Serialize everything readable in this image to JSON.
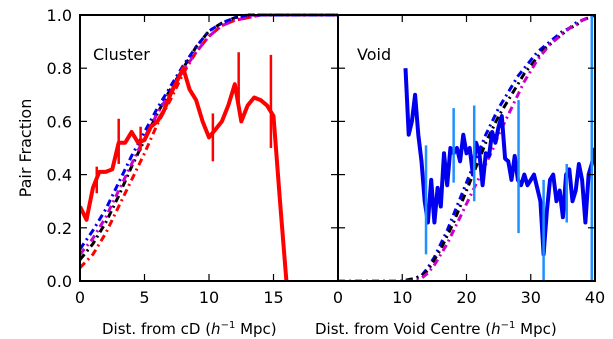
{
  "chart_data": [
    {
      "type": "line",
      "panel_label": "Cluster",
      "xlabel": "Dist. from cD ($h^{-1}$ Mpc)",
      "xlabel_main": "Dist. from cD (",
      "xlabel_sup": "−1",
      "xlabel_h": "h",
      "xlabel_tail": " Mpc)",
      "ylabel": "Pair Fraction",
      "xlim": [
        0,
        20
      ],
      "ylim": [
        0.0,
        1.0
      ],
      "xticks": [
        0,
        5,
        10,
        15
      ],
      "xtick_labels": [
        "0",
        "5",
        "10",
        "15"
      ],
      "yticks": [
        0.0,
        0.2,
        0.4,
        0.6,
        0.8,
        1.0
      ],
      "ytick_labels": [
        "0.0",
        "0.2",
        "0.4",
        "0.6",
        "0.8",
        "1.0"
      ],
      "series": [
        {
          "color": "#ff0000",
          "style": "solid",
          "width": 4,
          "x": [
            0,
            0.5,
            1,
            1.5,
            2,
            2.5,
            3,
            3.5,
            4,
            4.5,
            5,
            5.5,
            6,
            6.5,
            7,
            7.5,
            8,
            8.5,
            9,
            9.5,
            10,
            10.5,
            11,
            11.5,
            12,
            12.5,
            13,
            13.5,
            14,
            14.5,
            15,
            15.5,
            16
          ],
          "y": [
            0.28,
            0.23,
            0.35,
            0.41,
            0.41,
            0.42,
            0.52,
            0.52,
            0.56,
            0.52,
            0.53,
            0.58,
            0.6,
            0.64,
            0.7,
            0.75,
            0.8,
            0.72,
            0.68,
            0.6,
            0.54,
            0.57,
            0.6,
            0.66,
            0.74,
            0.6,
            0.66,
            0.69,
            0.68,
            0.66,
            0.62,
            0.3,
            0.0
          ],
          "errorbars": [
            {
              "x": 1.3,
              "lo": 0.33,
              "hi": 0.43
            },
            {
              "x": 3,
              "lo": 0.44,
              "hi": 0.61
            },
            {
              "x": 4.7,
              "lo": 0.49,
              "hi": 0.58
            },
            {
              "x": 10.3,
              "lo": 0.45,
              "hi": 0.63
            },
            {
              "x": 12.3,
              "lo": 0.65,
              "hi": 0.86
            },
            {
              "x": 14.8,
              "lo": 0.5,
              "hi": 0.85
            }
          ]
        },
        {
          "color": "#ff0000",
          "style": "dashdot",
          "width": 3,
          "x": [
            0,
            1,
            2,
            3,
            4,
            5,
            6,
            7,
            8,
            9,
            10,
            11,
            12,
            13,
            14,
            15,
            16,
            17,
            18,
            19,
            20
          ],
          "y": [
            0.05,
            0.1,
            0.18,
            0.28,
            0.38,
            0.48,
            0.59,
            0.68,
            0.78,
            0.86,
            0.92,
            0.96,
            0.98,
            0.99,
            1.0,
            1.0,
            1.0,
            1.0,
            1.0,
            1.0,
            1.0
          ]
        },
        {
          "color": "#000000",
          "style": "dashdot",
          "width": 3,
          "x": [
            0,
            1,
            2,
            3,
            4,
            5,
            6,
            7,
            8,
            9,
            10,
            11,
            12,
            13,
            14,
            15,
            16,
            17,
            18,
            19,
            20
          ],
          "y": [
            0.08,
            0.14,
            0.22,
            0.32,
            0.43,
            0.53,
            0.63,
            0.72,
            0.8,
            0.88,
            0.94,
            0.97,
            0.99,
            1.0,
            1.0,
            1.0,
            1.0,
            1.0,
            1.0,
            1.0,
            1.0
          ]
        },
        {
          "color": "#cc00cc",
          "style": "dashdot",
          "width": 3,
          "x": [
            0,
            1,
            2,
            3,
            4,
            5,
            6,
            7,
            8,
            9,
            10,
            11,
            12,
            13,
            14,
            15,
            16,
            17,
            18,
            19,
            20
          ],
          "y": [
            0.1,
            0.16,
            0.24,
            0.34,
            0.44,
            0.54,
            0.63,
            0.71,
            0.79,
            0.86,
            0.92,
            0.96,
            0.98,
            0.99,
            1.0,
            1.0,
            1.0,
            1.0,
            1.0,
            1.0,
            1.0
          ]
        },
        {
          "color": "#0000ee",
          "style": "dashdot",
          "width": 3,
          "x": [
            0,
            1,
            2,
            3,
            4,
            5,
            6,
            7,
            8,
            9,
            10,
            11,
            12,
            13,
            14,
            15,
            16,
            17,
            18,
            19,
            20
          ],
          "y": [
            0.12,
            0.19,
            0.27,
            0.37,
            0.47,
            0.56,
            0.65,
            0.73,
            0.81,
            0.88,
            0.94,
            0.97,
            0.99,
            1.0,
            1.0,
            1.0,
            1.0,
            1.0,
            1.0,
            1.0,
            1.0
          ]
        }
      ]
    },
    {
      "type": "line",
      "panel_label": "Void",
      "xlabel": "Dist. from Void Centre ($h^{-1}$ Mpc)",
      "xlabel_main": "Dist. from Void Centre (",
      "xlabel_sup": "−1",
      "xlabel_h": "h",
      "xlabel_tail": " Mpc)",
      "xlim": [
        0,
        40
      ],
      "ylim": [
        0.0,
        1.0
      ],
      "xticks": [
        0,
        10,
        20,
        30,
        40
      ],
      "xtick_labels": [
        "0",
        "10",
        "20",
        "30",
        "40"
      ],
      "yticks": [
        0.0,
        0.2,
        0.4,
        0.6,
        0.8,
        1.0
      ],
      "series": [
        {
          "color": "#0000ee",
          "style": "solid",
          "width": 4,
          "x": [
            10.5,
            11,
            11.5,
            12,
            12.5,
            13,
            13.5,
            14,
            14.5,
            15,
            15.5,
            16,
            16.5,
            17,
            17.5,
            18,
            18.5,
            19,
            19.5,
            20,
            20.5,
            21,
            21.5,
            22,
            22.5,
            23,
            23.5,
            24,
            24.5,
            25,
            25.5,
            26,
            26.5,
            27,
            27.5,
            28,
            28.5,
            29,
            29.5,
            30,
            30.5,
            31,
            31.5,
            32,
            32.5,
            33,
            33.5,
            34,
            34.5,
            35,
            35.5,
            36,
            36.5,
            37,
            37.5,
            38,
            38.5,
            39,
            39.5,
            40
          ],
          "y": [
            0.8,
            0.55,
            0.6,
            0.7,
            0.55,
            0.45,
            0.3,
            0.22,
            0.38,
            0.22,
            0.35,
            0.28,
            0.48,
            0.36,
            0.5,
            0.48,
            0.5,
            0.45,
            0.55,
            0.48,
            0.5,
            0.4,
            0.52,
            0.48,
            0.36,
            0.48,
            0.47,
            0.56,
            0.52,
            0.58,
            0.62,
            0.46,
            0.45,
            0.38,
            0.47,
            0.38,
            0.36,
            0.4,
            0.36,
            0.38,
            0.4,
            0.35,
            0.3,
            0.1,
            0.26,
            0.38,
            0.4,
            0.3,
            0.34,
            0.24,
            0.4,
            0.42,
            0.3,
            0.34,
            0.44,
            0.38,
            0.22,
            0.4,
            0.44,
            0.5
          ],
          "errorbars": [
            {
              "x": 13.7,
              "lo": 0.1,
              "hi": 0.51
            },
            {
              "x": 18,
              "lo": 0.37,
              "hi": 0.65
            },
            {
              "x": 21.2,
              "lo": 0.3,
              "hi": 0.66
            },
            {
              "x": 28.1,
              "lo": 0.18,
              "hi": 0.68
            },
            {
              "x": 32,
              "lo": 0.0,
              "hi": 0.38
            },
            {
              "x": 35.6,
              "lo": 0.22,
              "hi": 0.44
            },
            {
              "x": 39.5,
              "lo": 0.0,
              "hi": 1.0
            }
          ]
        },
        {
          "color": "#0000ee",
          "style": "dashdot",
          "width": 3,
          "x": [
            0,
            10,
            12,
            13,
            14,
            15,
            16,
            17,
            18,
            19,
            20,
            21,
            22,
            23,
            24,
            25,
            26,
            27,
            28,
            29,
            30,
            31,
            32,
            33,
            34,
            35,
            36,
            37,
            38,
            39,
            40
          ],
          "y": [
            0.0,
            0.0,
            0.01,
            0.02,
            0.05,
            0.09,
            0.14,
            0.19,
            0.25,
            0.31,
            0.37,
            0.43,
            0.49,
            0.55,
            0.6,
            0.65,
            0.69,
            0.73,
            0.77,
            0.8,
            0.83,
            0.86,
            0.88,
            0.9,
            0.92,
            0.94,
            0.95,
            0.97,
            0.98,
            0.99,
            1.0
          ]
        },
        {
          "color": "#000000",
          "style": "dashdot",
          "width": 3,
          "x": [
            0,
            10,
            12,
            13,
            14,
            15,
            16,
            17,
            18,
            19,
            20,
            21,
            22,
            23,
            24,
            25,
            26,
            27,
            28,
            29,
            30,
            31,
            32,
            33,
            34,
            35,
            36,
            37,
            38,
            39,
            40
          ],
          "y": [
            0.0,
            0.0,
            0.01,
            0.02,
            0.04,
            0.08,
            0.12,
            0.17,
            0.22,
            0.28,
            0.34,
            0.4,
            0.46,
            0.52,
            0.57,
            0.62,
            0.66,
            0.7,
            0.74,
            0.78,
            0.81,
            0.84,
            0.87,
            0.89,
            0.91,
            0.93,
            0.95,
            0.96,
            0.98,
            0.99,
            1.0
          ]
        },
        {
          "color": "#cc00cc",
          "style": "dashdot",
          "width": 3,
          "x": [
            0,
            10,
            12,
            13,
            14,
            15,
            16,
            17,
            18,
            19,
            20,
            21,
            22,
            23,
            24,
            25,
            26,
            27,
            28,
            29,
            30,
            31,
            32,
            33,
            34,
            35,
            36,
            37,
            38,
            39,
            40
          ],
          "y": [
            0.0,
            0.0,
            0.0,
            0.01,
            0.03,
            0.06,
            0.1,
            0.14,
            0.19,
            0.24,
            0.29,
            0.34,
            0.39,
            0.44,
            0.49,
            0.55,
            0.6,
            0.65,
            0.7,
            0.75,
            0.79,
            0.83,
            0.86,
            0.89,
            0.91,
            0.93,
            0.95,
            0.96,
            0.98,
            0.99,
            1.0
          ]
        }
      ]
    }
  ]
}
